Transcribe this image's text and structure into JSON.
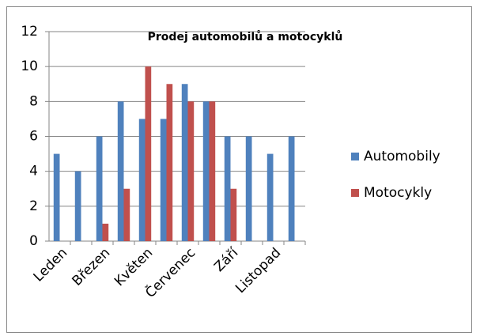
{
  "chart_data": {
    "type": "bar",
    "title": "Prodej automobilů a motocyklů",
    "categories": [
      "Leden",
      null,
      "Březen",
      null,
      "Květen",
      null,
      "Červenec",
      null,
      "Září",
      null,
      "Listopad",
      null
    ],
    "series": [
      {
        "name": "Automobily",
        "color": "#4f81bd",
        "values": [
          5,
          4,
          6,
          8,
          7,
          7,
          9,
          8,
          6,
          6,
          5,
          6
        ]
      },
      {
        "name": "Motocykly",
        "color": "#c0504d",
        "values": [
          0,
          0,
          1,
          3,
          10,
          9,
          8,
          8,
          3,
          0,
          0,
          0
        ]
      }
    ],
    "ylim": [
      0,
      12
    ],
    "yticks": [
      0,
      2,
      4,
      6,
      8,
      10,
      12
    ],
    "grid": true,
    "legend": "right"
  }
}
